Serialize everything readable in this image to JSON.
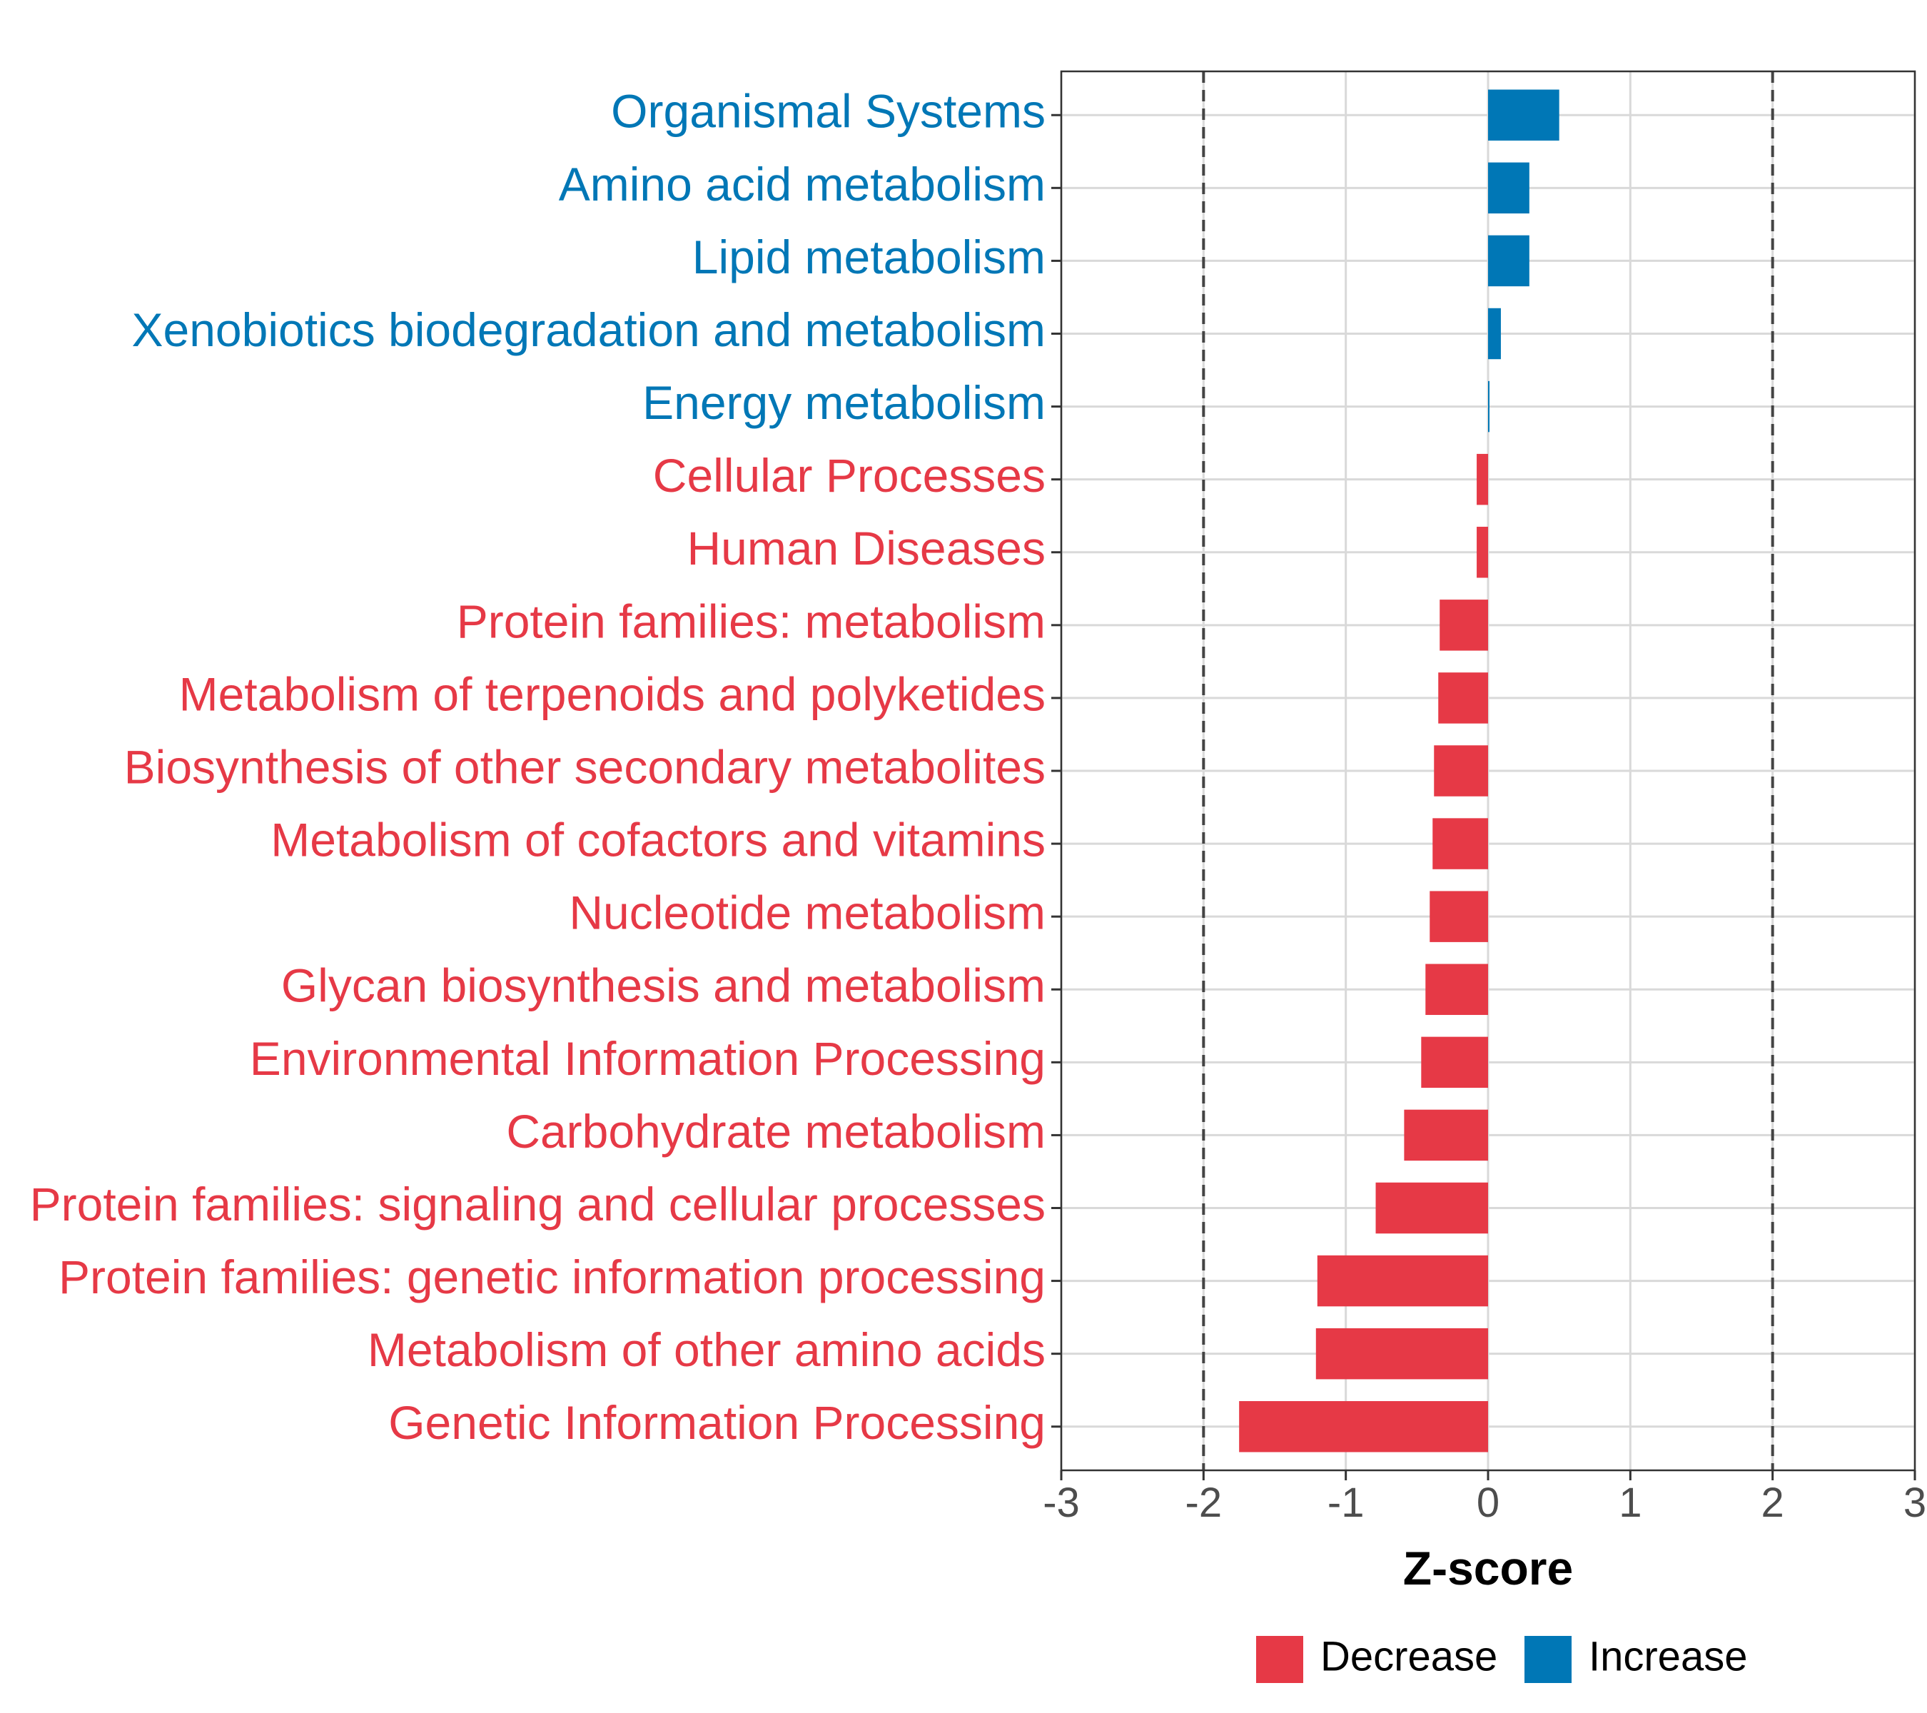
{
  "chart_data": {
    "type": "bar",
    "orientation": "horizontal",
    "title": "",
    "xlabel": "Z-score",
    "ylabel": "",
    "xlim": [
      -3,
      3
    ],
    "xticks": [
      -3,
      -2,
      -1,
      0,
      1,
      2,
      3
    ],
    "xtick_labels": [
      "-3",
      "-2",
      "-1",
      "0",
      "1",
      "2",
      "3"
    ],
    "threshold_lines": [
      -2,
      2
    ],
    "grid": true,
    "colors": {
      "Decrease": "#E63946",
      "Increase": "#0077B6"
    },
    "categories": [
      "Organismal Systems",
      "Amino acid metabolism",
      "Lipid metabolism",
      "Xenobiotics biodegradation and metabolism",
      "Energy metabolism",
      "Cellular Processes",
      "Human Diseases",
      "Protein families: metabolism",
      "Metabolism of terpenoids and polyketides",
      "Biosynthesis of other secondary metabolites",
      "Metabolism of cofactors and vitamins",
      "Nucleotide metabolism",
      "Glycan biosynthesis and metabolism",
      "Environmental Information Processing",
      "Carbohydrate metabolism",
      "Protein families: signaling and cellular processes",
      "Protein families: genetic information processing",
      "Metabolism of other amino acids",
      "Genetic Information Processing"
    ],
    "values": [
      0.5,
      0.29,
      0.29,
      0.09,
      0.01,
      -0.08,
      -0.08,
      -0.34,
      -0.35,
      -0.38,
      -0.39,
      -0.41,
      -0.44,
      -0.47,
      -0.59,
      -0.79,
      -1.2,
      -1.21,
      -1.75
    ],
    "groups": [
      "Increase",
      "Increase",
      "Increase",
      "Increase",
      "Increase",
      "Decrease",
      "Decrease",
      "Decrease",
      "Decrease",
      "Decrease",
      "Decrease",
      "Decrease",
      "Decrease",
      "Decrease",
      "Decrease",
      "Decrease",
      "Decrease",
      "Decrease",
      "Decrease"
    ],
    "legend": {
      "position": "bottom",
      "entries": [
        {
          "label": "Decrease",
          "color": "#E63946"
        },
        {
          "label": "Increase",
          "color": "#0077B6"
        }
      ]
    }
  }
}
